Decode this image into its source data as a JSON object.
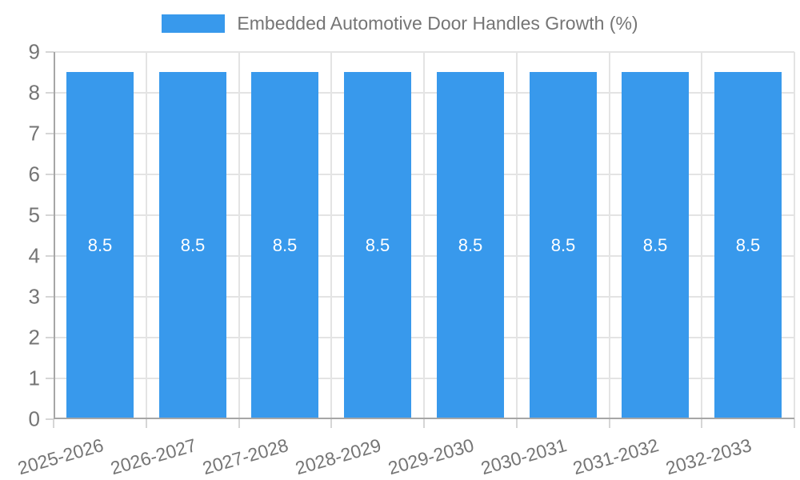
{
  "legend": {
    "label": "Embedded Automotive Door Handles Growth (%)"
  },
  "chart_data": {
    "type": "bar",
    "title": "Embedded Automotive Door Handles Growth (%)",
    "legend_position": "top",
    "categories": [
      "2025-2026",
      "2026-2027",
      "2027-2028",
      "2028-2029",
      "2029-2030",
      "2030-2031",
      "2031-2032",
      "2032-2033"
    ],
    "series": [
      {
        "name": "Embedded Automotive Door Handles Growth (%)",
        "values": [
          8.5,
          8.5,
          8.5,
          8.5,
          8.5,
          8.5,
          8.5,
          8.5
        ]
      }
    ],
    "bar_value_labels": [
      "8.5",
      "8.5",
      "8.5",
      "8.5",
      "8.5",
      "8.5",
      "8.5",
      "8.5"
    ],
    "ylim": [
      0,
      9
    ],
    "ytick_labels": [
      "0",
      "1",
      "2",
      "3",
      "4",
      "5",
      "6",
      "7",
      "8",
      "9"
    ],
    "grid": true,
    "colors": {
      "bar": "#3899EC",
      "bar_label": "#ffffff",
      "text": "#757575",
      "grid": "#e4e4e4",
      "axis": "#a6a6a6",
      "tick": "#d6d6d6",
      "background": "#ffffff"
    }
  }
}
